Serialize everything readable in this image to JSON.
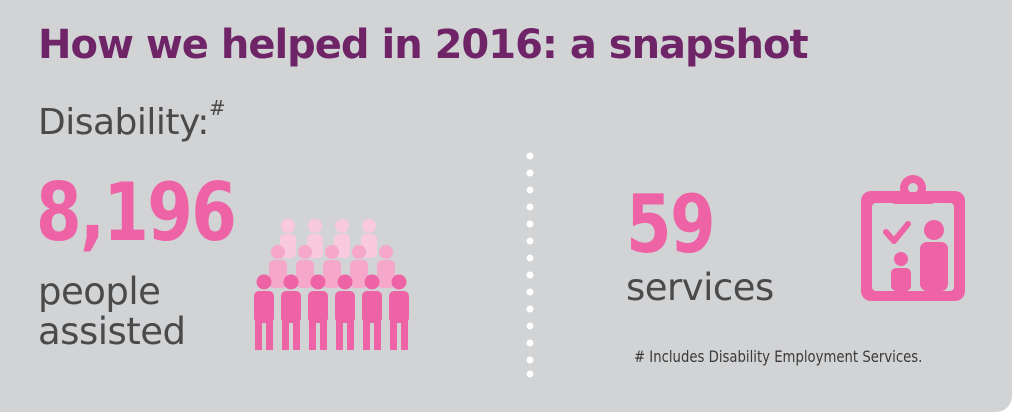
{
  "title": "How we helped in 2016: a snapshot",
  "category": {
    "label": "Disability:",
    "marker": "#"
  },
  "people": {
    "value": "8,196",
    "label": "people\nassisted"
  },
  "services": {
    "value": "59",
    "label": "services"
  },
  "footnote": "# Includes Disability Employment Services.",
  "icons": {
    "people": "crowd-icon",
    "services": "clipboard-person-icon"
  },
  "colors": {
    "heading": "#6e2466",
    "accent": "#ee62a6",
    "background": "#d2d3d5",
    "text": "#4a4a4a"
  }
}
